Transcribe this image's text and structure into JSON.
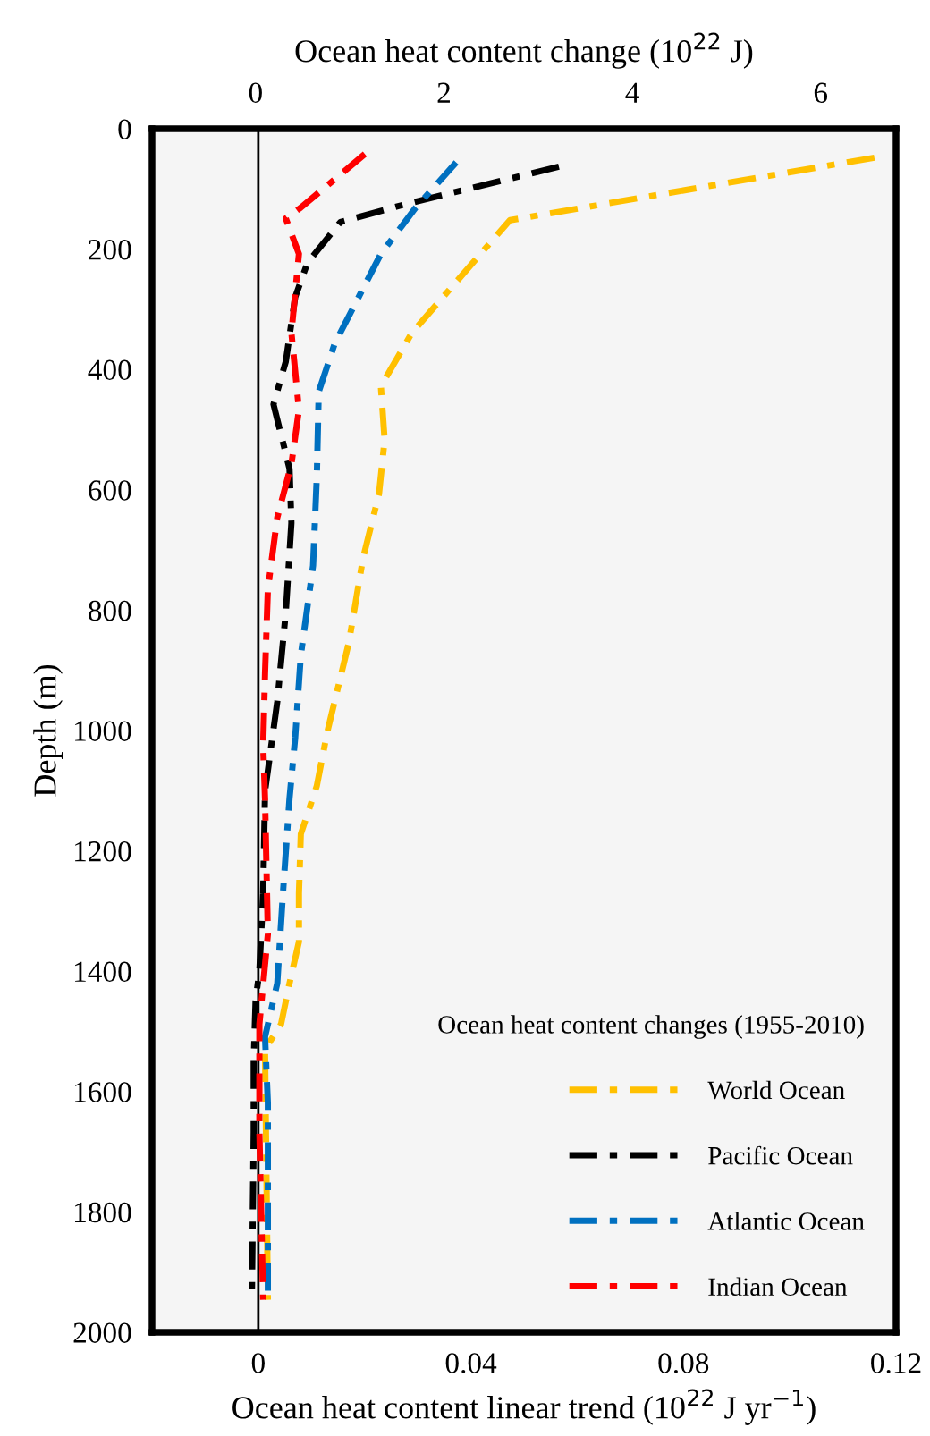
{
  "chart_data": {
    "type": "line",
    "xlabel": "Ocean heat content linear trend (10$^{22}$ J yr$^{−1}$)",
    "x2label": "Ocean heat content change (10$^{22}$ J)",
    "ylabel": "Depth (m)",
    "legend_title": "Ocean heat content changes (1955-2010)",
    "xlim": [
      -0.02,
      0.12
    ],
    "xticks": [
      0,
      0.04,
      0.08,
      0.12
    ],
    "x2lim": [
      -1.1,
      6.8
    ],
    "x2ticks": [
      0,
      2,
      4,
      6
    ],
    "ylim": [
      2000,
      0
    ],
    "yticks": [
      0,
      200,
      400,
      600,
      800,
      1000,
      1200,
      1400,
      1600,
      1800,
      2000
    ],
    "grid": false,
    "legend": "bottom right",
    "line_style": "dashdot",
    "marker": "none",
    "ref_lines": [
      {
        "axis": "x",
        "value": 0,
        "color": "#000000",
        "line_style": "solid"
      }
    ],
    "series": [
      {
        "name": "World Ocean",
        "color": "#ffc000",
        "axis": "x2",
        "x": [
          6.57,
          2.7,
          1.66,
          1.33,
          1.37,
          1.31,
          1.14,
          0.99,
          0.76,
          0.65,
          0.48,
          0.46,
          0.46,
          0.36,
          0.27,
          0.1,
          0.13
        ],
        "values": [
          48,
          152,
          339,
          428,
          517,
          607,
          714,
          854,
          1003,
          1092,
          1172,
          1271,
          1351,
          1420,
          1488,
          1530,
          1946
        ]
      },
      {
        "name": "Pacific Ocean",
        "color": "#000000",
        "axis": "x2",
        "x": [
          3.22,
          1.6,
          0.9,
          0.55,
          0.42,
          0.32,
          0.19,
          0.36,
          0.38,
          0.32,
          0.23,
          0.1,
          0.08,
          0.04,
          0,
          -0.02,
          -0.02,
          -0.04
        ],
        "values": [
          63,
          125,
          155,
          223,
          280,
          387,
          458,
          565,
          655,
          804,
          952,
          1101,
          1271,
          1399,
          1449,
          1548,
          1667,
          1946
        ]
      },
      {
        "name": "Atlantic Ocean",
        "color": "#0070c0",
        "axis": "x2",
        "x": [
          2.13,
          1.7,
          1.33,
          0.84,
          0.67,
          0.65,
          0.61,
          0.48,
          0.42,
          0.36,
          0.29,
          0.23,
          0.1,
          0.13,
          0.13
        ],
        "values": [
          56,
          131,
          208,
          357,
          437,
          577,
          726,
          875,
          1012,
          1113,
          1271,
          1420,
          1509,
          1619,
          1946
        ]
      },
      {
        "name": "Indian Ocean",
        "color": "#ff0000",
        "axis": "x2",
        "x": [
          1.16,
          0.48,
          0.32,
          0.46,
          0.38,
          0.46,
          0.38,
          0.23,
          0.13,
          0.1,
          0.08,
          0.1,
          0.13,
          0.04,
          0.04,
          0.08
        ],
        "values": [
          42,
          131,
          149,
          208,
          339,
          467,
          557,
          646,
          765,
          905,
          1024,
          1113,
          1339,
          1488,
          1667,
          1946
        ]
      }
    ]
  }
}
